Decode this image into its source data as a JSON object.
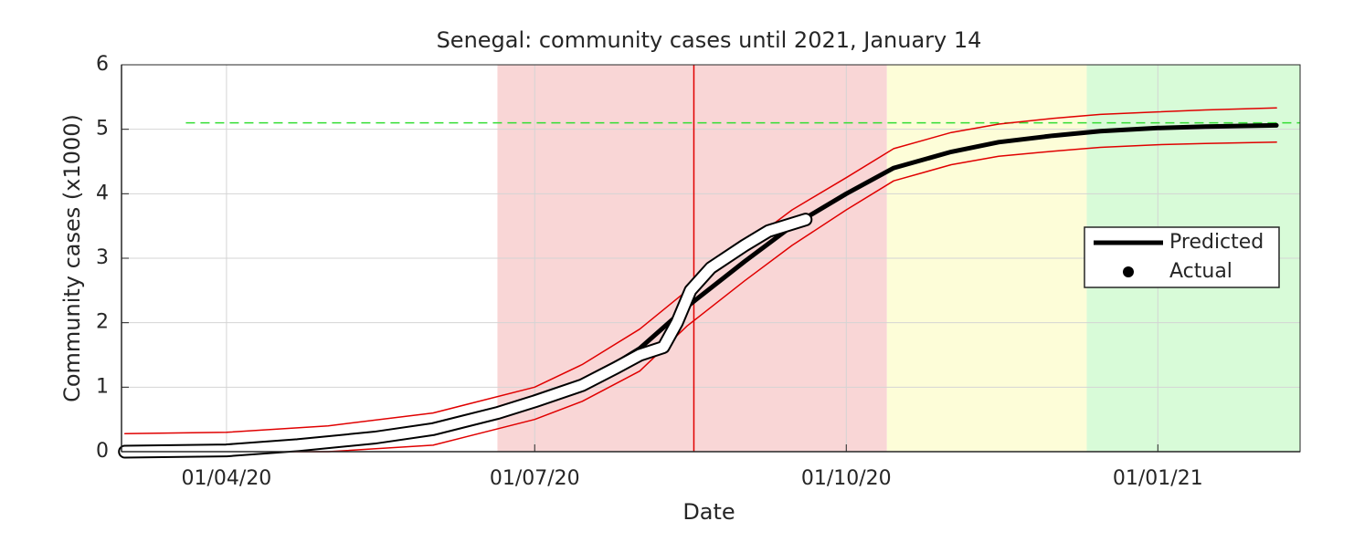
{
  "chart_data": {
    "type": "line",
    "title": "Senegal: community cases until 2021, January 14",
    "x_label": "Date",
    "y_label": "Community cases (x1000)",
    "xlim": [
      "2020-03-01",
      "2021-02-12"
    ],
    "xticks": [
      {
        "value": "2020-04-01",
        "label": "01/04/20"
      },
      {
        "value": "2020-07-01",
        "label": "01/07/20"
      },
      {
        "value": "2020-10-01",
        "label": "01/10/20"
      },
      {
        "value": "2021-01-01",
        "label": "01/01/21"
      }
    ],
    "ylim": [
      0,
      6
    ],
    "yticks": [
      0,
      1,
      2,
      3,
      4,
      5,
      6
    ],
    "grid": true,
    "legend": "east",
    "shaded_regions": [
      {
        "start": "2020-06-20",
        "end": "2020-10-13",
        "color": "#f9d6d6"
      },
      {
        "start": "2020-10-13",
        "end": "2020-12-11",
        "color": "#fdfdd8"
      },
      {
        "start": "2020-12-11",
        "end": "2021-02-12",
        "color": "#d8fbd8"
      }
    ],
    "vline": {
      "x": "2020-08-17",
      "color": "#e00000"
    },
    "hline": {
      "y": 5.1,
      "start": "2020-03-20",
      "color": "#33dd33",
      "dashed": true
    },
    "x": [
      "2020-03-02",
      "2020-04-01",
      "2020-05-01",
      "2020-06-01",
      "2020-07-01",
      "2020-07-15",
      "2020-08-01",
      "2020-08-15",
      "2020-09-01",
      "2020-09-15",
      "2020-10-01",
      "2020-10-15",
      "2020-11-01",
      "2020-11-15",
      "2020-12-01",
      "2020-12-15",
      "2021-01-01",
      "2021-01-15",
      "2021-02-05"
    ],
    "series": [
      {
        "color": "#e00000",
        "width": 1.5,
        "values": [
          0.28,
          0.3,
          0.4,
          0.6,
          1.0,
          1.35,
          1.9,
          2.5,
          3.2,
          3.75,
          4.25,
          4.7,
          4.95,
          5.08,
          5.17,
          5.23,
          5.27,
          5.3,
          5.33
        ]
      },
      {
        "color": "#e00000",
        "width": 1.5,
        "values": [
          0,
          0,
          0,
          0.1,
          0.5,
          0.78,
          1.25,
          1.95,
          2.65,
          3.2,
          3.75,
          4.2,
          4.45,
          4.58,
          4.66,
          4.72,
          4.76,
          4.78,
          4.8
        ]
      },
      {
        "name": "Predicted",
        "color": "#000000",
        "width": 5,
        "values": [
          0.03,
          0.06,
          0.15,
          0.35,
          0.75,
          1.05,
          1.6,
          2.25,
          2.95,
          3.5,
          4.0,
          4.4,
          4.65,
          4.8,
          4.9,
          4.97,
          5.02,
          5.04,
          5.06
        ]
      },
      {
        "name": "Actual",
        "color": "#ffffff",
        "edge": "#000000",
        "marker": "o",
        "width": 11,
        "x": [
          "2020-03-02",
          "2020-04-01",
          "2020-04-22",
          "2020-05-15",
          "2020-06-01",
          "2020-06-20",
          "2020-07-01",
          "2020-07-15",
          "2020-07-25",
          "2020-08-01",
          "2020-08-08",
          "2020-08-12",
          "2020-08-16",
          "2020-08-22",
          "2020-09-01",
          "2020-09-08",
          "2020-09-19"
        ],
        "values": [
          0,
          0.02,
          0.1,
          0.22,
          0.35,
          0.6,
          0.78,
          1.03,
          1.3,
          1.5,
          1.62,
          2.0,
          2.5,
          2.85,
          3.2,
          3.42,
          3.6
        ]
      }
    ]
  }
}
